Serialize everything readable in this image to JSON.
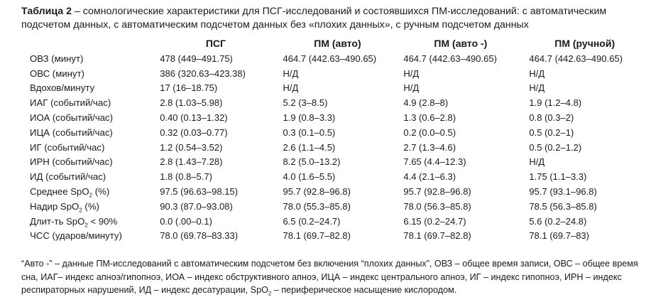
{
  "caption": {
    "label": "Таблица 2",
    "text": " – сомнологические характеристики для ПСГ-исследований и состоявшихся ПМ-исследований: с автоматическим подсчетом данных, с автоматическим подсчетом данных без «плохих данных», с ручным подсчетом данных"
  },
  "headers": [
    "",
    "ПСГ",
    "ПМ (авто)",
    "ПМ (авто -)",
    "ПМ (ручной)"
  ],
  "rows": [
    {
      "label": "ОВЗ (минут)",
      "values": [
        "478 (449–491.75)",
        "464.7 (442.63–490.65)",
        "464.7 (442.63–490.65)",
        "464.7 (442.63–490.65)"
      ]
    },
    {
      "label": "ОВС (минут)",
      "values": [
        "386 (320.63–423.38)",
        "Н/Д",
        "Н/Д",
        "Н/Д"
      ]
    },
    {
      "label": "Вдохов/минуту",
      "values": [
        "17 (16–18.75)",
        "Н/Д",
        "Н/Д",
        "Н/Д"
      ]
    },
    {
      "label": "ИАГ (событий/час)",
      "values": [
        "2.8 (1.03–5.98)",
        "5.2 (3–8.5)",
        "4.9 (2.8–8)",
        "1.9 (1.2–4.8)"
      ]
    },
    {
      "label": "ИОА (событий/час)",
      "values": [
        "0.40 (0.13–1.32)",
        "1.9 (0.8–3.3)",
        "1.3 (0.6–2.8)",
        "0.8 (0.3–2)"
      ]
    },
    {
      "label": "ИЦА (событий/час)",
      "values": [
        "0.32 (0.03–0.77)",
        "0.3 (0.1–0.5)",
        "0.2 (0.0–0.5)",
        "0.5 (0.2–1)"
      ]
    },
    {
      "label": "ИГ (событий/час)",
      "values": [
        "1.2 (0.54–3.52)",
        "2.6 (1.1–4.5)",
        "2.7 (1.3–4.6)",
        "0.5 (0.2–1.2)"
      ]
    },
    {
      "label": "ИРН (событий/час)",
      "values": [
        "2.8 (1.43–7.28)",
        "8.2 (5.0–13.2)",
        "7.65 (4.4–12.3)",
        "Н/Д"
      ]
    },
    {
      "label": "ИД (событий/час)",
      "values": [
        "1.8 (0.8–5.7)",
        "4.0 (1.6–5.5)",
        "4.4 (2.1–6.3)",
        "1.75 (1.1–3.3)"
      ]
    },
    {
      "label": "Среднее SpO",
      "sub": "2",
      "suffix": " (%)",
      "values": [
        "97.5 (96.63–98.15)",
        "95.7 (92.8–96.8)",
        "95.7 (92.8–96.8)",
        "95.7 (93.1–96.8)"
      ]
    },
    {
      "label": "Надир SpO",
      "sub": "2",
      "suffix": " (%)",
      "values": [
        "90.3 (87.0–93.08)",
        "78.0 (55.3–85.8)",
        "78.0 (56.3–85.8)",
        "78.5 (56.3–85.8)"
      ]
    },
    {
      "label": "Длит-ть SpO",
      "sub": "2",
      "suffix": " < 90%",
      "values": [
        "0.0 (.00–0.1)",
        "6.5 (0.2–24.7)",
        "6.15 (0.2–24.7)",
        "5.6 (0.2–24.8)"
      ]
    },
    {
      "label": "ЧСС (ударов/минуту)",
      "values": [
        "78.0 (69.78–83.33)",
        "78.1 (69.7–82.8)",
        "78.1 (69.7–82.8)",
        "78.1 (69.7–83)"
      ]
    }
  ],
  "note": {
    "part1": "“Авто -” – данные ПМ-исследований с автоматическим подсчетом без включения “плохих данных”, ОВЗ – общее время записи, ОВС – общее время сна, ИАГ– индекс апноэ/гипопноэ, ИОА – индекс обструктивного апноэ, ИЦА – индекс центрального апноэ, ИГ – индекс гипопноэ, ИРН – индекс респираторных нарушений, ИД – индекс десатурации, SpO",
    "sub": "2",
    "part2": " – периферическое насыщение кислородом."
  }
}
